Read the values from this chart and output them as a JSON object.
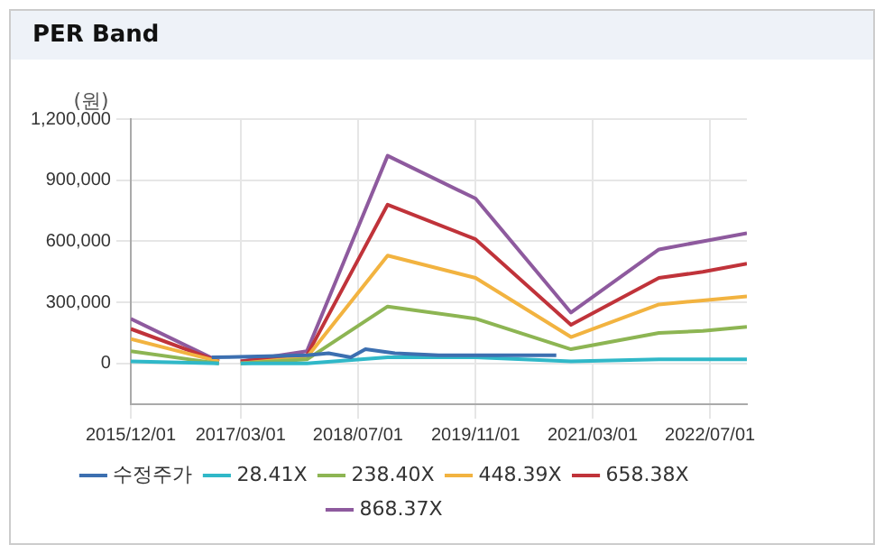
{
  "chart_data": {
    "type": "line",
    "title": "PER Band",
    "ylabel": "(원)",
    "series": [
      {
        "name": "수정주가",
        "color": "#3c6fb0",
        "x": [
          "2016-11-01",
          "2017-12-01",
          "2018-03-01",
          "2018-06-01",
          "2018-08-01",
          "2018-12-01",
          "2019-06-01",
          "2019-11-01",
          "2020-04-01",
          "2020-10-01"
        ],
        "values": [
          30000,
          40000,
          50000,
          30000,
          70000,
          50000,
          40000,
          40000,
          40000,
          40000
        ]
      },
      {
        "name": "28.41X",
        "color": "#30b8c8",
        "x": [
          "2015-12-01",
          "2016-12-01",
          "2017-01-01",
          "2017-03-01",
          "2017-12-01",
          "2018-11-01",
          "2019-11-01",
          "2020-12-01",
          "2021-12-01",
          "2022-06-01",
          "2022-12-01"
        ],
        "values": [
          10000,
          0,
          null,
          0,
          0,
          30000,
          30000,
          10000,
          20000,
          20000,
          20000
        ]
      },
      {
        "name": "238.40X",
        "color": "#8db553",
        "x": [
          "2015-12-01",
          "2016-12-01",
          "2017-01-01",
          "2017-03-01",
          "2017-12-01",
          "2018-11-01",
          "2019-11-01",
          "2020-12-01",
          "2021-12-01",
          "2022-06-01",
          "2022-12-01"
        ],
        "values": [
          60000,
          0,
          null,
          0,
          20000,
          280000,
          220000,
          70000,
          150000,
          160000,
          180000
        ]
      },
      {
        "name": "448.39X",
        "color": "#f2b340",
        "x": [
          "2015-12-01",
          "2016-12-01",
          "2017-01-01",
          "2017-03-01",
          "2017-12-01",
          "2018-11-01",
          "2019-11-01",
          "2020-12-01",
          "2021-12-01",
          "2022-06-01",
          "2022-12-01"
        ],
        "values": [
          120000,
          10000,
          null,
          0,
          30000,
          530000,
          420000,
          130000,
          290000,
          310000,
          330000
        ]
      },
      {
        "name": "658.38X",
        "color": "#c0333a",
        "x": [
          "2015-12-01",
          "2016-12-01",
          "2017-01-01",
          "2017-03-01",
          "2017-12-01",
          "2018-11-01",
          "2019-11-01",
          "2020-12-01",
          "2021-12-01",
          "2022-06-01",
          "2022-12-01"
        ],
        "values": [
          170000,
          10000,
          null,
          10000,
          40000,
          780000,
          610000,
          190000,
          420000,
          450000,
          490000
        ]
      },
      {
        "name": "868.37X",
        "color": "#8e5a9e",
        "x": [
          "2015-12-01",
          "2016-12-01",
          "2017-01-01",
          "2017-03-01",
          "2017-12-01",
          "2018-11-01",
          "2019-11-01",
          "2020-12-01",
          "2021-12-01",
          "2022-06-01",
          "2022-12-01"
        ],
        "values": [
          220000,
          10000,
          null,
          10000,
          60000,
          1020000,
          810000,
          250000,
          560000,
          600000,
          640000
        ]
      }
    ],
    "xlim": [
      "2015-12-01",
      "2022-12-01"
    ],
    "xticks": [
      {
        "value": "2015-12-01",
        "label": "2015/12/01"
      },
      {
        "value": "2017-03-01",
        "label": "2017/03/01"
      },
      {
        "value": "2018-07-01",
        "label": "2018/07/01"
      },
      {
        "value": "2019-11-01",
        "label": "2019/11/01"
      },
      {
        "value": "2021-03-01",
        "label": "2021/03/01"
      },
      {
        "value": "2022-07-01",
        "label": "2022/07/01"
      }
    ],
    "ylim": [
      -200000,
      1200000
    ],
    "yticks": [
      {
        "value": 0,
        "label": "0"
      },
      {
        "value": 300000,
        "label": "300,000"
      },
      {
        "value": 600000,
        "label": "600,000"
      },
      {
        "value": 900000,
        "label": "900,000"
      },
      {
        "value": 1200000,
        "label": "1,200,000"
      }
    ],
    "grid": true,
    "legend": "bottom",
    "marker": "none",
    "line_style": "solid"
  }
}
